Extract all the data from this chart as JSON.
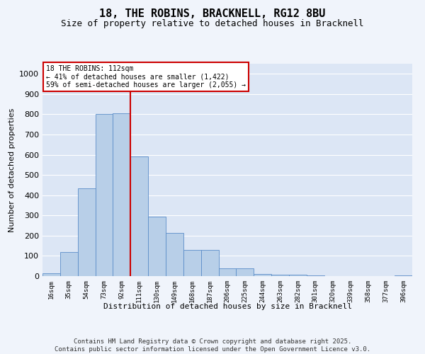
{
  "title": "18, THE ROBINS, BRACKNELL, RG12 8BU",
  "subtitle": "Size of property relative to detached houses in Bracknell",
  "xlabel": "Distribution of detached houses by size in Bracknell",
  "ylabel": "Number of detached properties",
  "categories": [
    "16sqm",
    "35sqm",
    "54sqm",
    "73sqm",
    "92sqm",
    "111sqm",
    "130sqm",
    "149sqm",
    "168sqm",
    "187sqm",
    "206sqm",
    "225sqm",
    "244sqm",
    "263sqm",
    "282sqm",
    "301sqm",
    "320sqm",
    "339sqm",
    "358sqm",
    "377sqm",
    "396sqm"
  ],
  "values": [
    15,
    120,
    435,
    800,
    805,
    590,
    295,
    215,
    130,
    130,
    37,
    38,
    12,
    8,
    6,
    5,
    1,
    1,
    1,
    1,
    4
  ],
  "bar_color": "#b8cfe8",
  "bar_edge_color": "#5b8dc8",
  "vline_color": "#cc0000",
  "vline_x_index": 4.5,
  "annotation_text": "18 THE ROBINS: 112sqm\n← 41% of detached houses are smaller (1,422)\n59% of semi-detached houses are larger (2,055) →",
  "annotation_box_color": "#ffffff",
  "annotation_box_edge": "#cc0000",
  "ylim": [
    0,
    1050
  ],
  "yticks": [
    0,
    100,
    200,
    300,
    400,
    500,
    600,
    700,
    800,
    900,
    1000
  ],
  "fig_bg_color": "#f0f4fb",
  "plot_bg_color": "#dce6f5",
  "grid_color": "#ffffff",
  "footnote": "Contains HM Land Registry data © Crown copyright and database right 2025.\nContains public sector information licensed under the Open Government Licence v3.0.",
  "title_fontsize": 11,
  "subtitle_fontsize": 9,
  "ylabel_fontsize": 8,
  "xlabel_fontsize": 8,
  "ytick_fontsize": 8,
  "xtick_fontsize": 6.5
}
